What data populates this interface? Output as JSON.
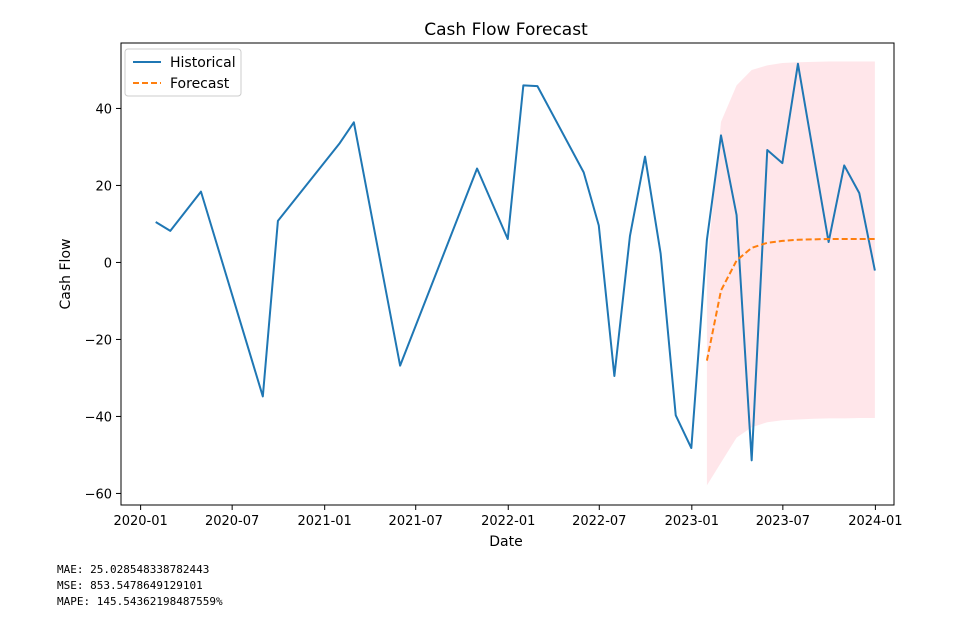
{
  "chart_data": {
    "type": "line",
    "title": "Cash Flow Forecast",
    "xlabel": "Date",
    "ylabel": "Cash Flow",
    "ylim": [
      -63,
      57
    ],
    "xlim": [
      "2019-11-23",
      "2024-02-07"
    ],
    "x_ticks": [
      "2020-01",
      "2020-07",
      "2021-01",
      "2021-07",
      "2022-01",
      "2022-07",
      "2023-01",
      "2023-07",
      "2024-01"
    ],
    "y_ticks": [
      40,
      20,
      0,
      -20,
      -40,
      -60
    ],
    "legend_position": "upper-left",
    "series": [
      {
        "name": "Historical",
        "color": "#1f77b4",
        "style": "solid",
        "x": [
          "2020-01-31",
          "2020-02-29",
          "2020-04-30",
          "2020-08-31",
          "2020-09-30",
          "2021-01-31",
          "2021-02-28",
          "2021-05-31",
          "2021-10-31",
          "2021-12-31",
          "2022-01-31",
          "2022-02-28",
          "2022-05-31",
          "2022-06-30",
          "2022-07-31",
          "2022-08-31",
          "2022-09-30",
          "2022-10-31",
          "2022-11-30",
          "2022-12-31",
          "2023-01-31",
          "2023-02-28",
          "2023-03-31",
          "2023-04-30",
          "2023-05-31",
          "2023-06-30",
          "2023-07-31",
          "2023-08-31",
          "2023-09-30",
          "2023-10-31",
          "2023-11-30",
          "2023-12-31"
        ],
        "y": [
          10.5,
          8.2,
          18.4,
          -34.8,
          10.8,
          31.0,
          36.4,
          -26.8,
          24.4,
          6.1,
          46.0,
          45.8,
          23.4,
          9.6,
          -29.5,
          6.9,
          27.5,
          2.3,
          -39.7,
          -48.2,
          5.9,
          33.0,
          12.3,
          -51.4,
          29.2,
          25.8,
          51.6,
          28.0,
          5.3,
          25.2,
          18.0,
          -2.1
        ]
      },
      {
        "name": "Forecast",
        "color": "#ff7f0e",
        "style": "dashed",
        "x": [
          "2023-01-31",
          "2023-02-28",
          "2023-03-31",
          "2023-04-30",
          "2023-05-31",
          "2023-06-30",
          "2023-07-31",
          "2023-08-31",
          "2023-09-30",
          "2023-10-31",
          "2023-11-30",
          "2023-12-31"
        ],
        "y": [
          -25.5,
          -7.3,
          0.5,
          3.8,
          5.1,
          5.6,
          5.9,
          6.0,
          6.1,
          6.1,
          6.1,
          6.1
        ]
      }
    ],
    "confidence_interval": {
      "color": "#ffc0cb",
      "x": [
        "2023-01-31",
        "2023-02-28",
        "2023-03-31",
        "2023-04-30",
        "2023-05-31",
        "2023-06-30",
        "2023-07-31",
        "2023-08-31",
        "2023-09-30",
        "2023-10-31",
        "2023-11-30",
        "2023-12-31"
      ],
      "lower": [
        -57.9,
        -52.0,
        -45.5,
        -42.8,
        -41.5,
        -41.0,
        -40.8,
        -40.6,
        -40.5,
        -40.5,
        -40.4,
        -40.4
      ],
      "upper": [
        -1.0,
        36.5,
        46.0,
        50.0,
        51.2,
        51.8,
        52.0,
        52.1,
        52.2,
        52.2,
        52.2,
        52.2
      ]
    }
  },
  "metrics": {
    "mae": "MAE: 25.028548338782443",
    "mse": "MSE: 853.5478649129101",
    "mape": "MAPE: 145.54362198487559%"
  }
}
